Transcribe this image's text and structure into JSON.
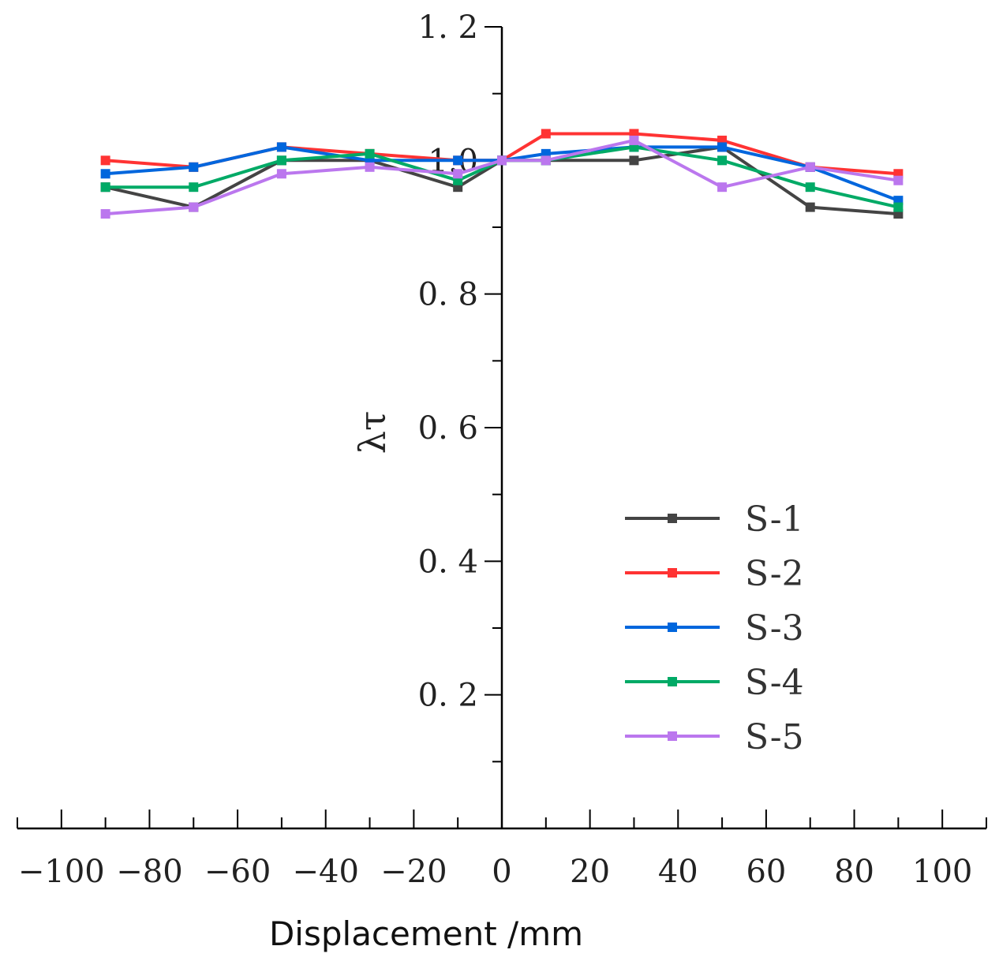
{
  "chart_data": {
    "type": "line",
    "title": "",
    "xlabel": "Displacement /mm",
    "ylabel": "λτ",
    "xlim": [
      -110,
      110
    ],
    "ylim": [
      0,
      1.2
    ],
    "x_ticks": [
      -100,
      -80,
      -60,
      -40,
      -20,
      0,
      20,
      40,
      60,
      80,
      100
    ],
    "x_tick_labels": [
      "−100",
      "−80",
      "−60",
      "−40",
      "−20",
      "0",
      "20",
      "40",
      "60",
      "80",
      "100"
    ],
    "y_ticks_labeled": [
      0.2,
      0.4,
      0.6,
      0.8,
      1.2
    ],
    "y_tick_labels": [
      "0. 2",
      "0. 4",
      "0. 6",
      "0. 8",
      "1. 2"
    ],
    "y_label_partial": "1.0",
    "grid": false,
    "legend_position": "bottom-right",
    "x": [
      -90,
      -70,
      -50,
      -30,
      -10,
      0,
      10,
      30,
      50,
      70,
      90
    ],
    "series": [
      {
        "name": "S-1",
        "color": "#444444",
        "values": [
          0.96,
          0.93,
          1.0,
          1.0,
          0.96,
          1.0,
          1.0,
          1.0,
          1.02,
          0.93,
          0.92
        ]
      },
      {
        "name": "S-2",
        "color": "#ff3333",
        "values": [
          1.0,
          0.99,
          1.02,
          1.01,
          1.0,
          1.0,
          1.04,
          1.04,
          1.03,
          0.99,
          0.98
        ]
      },
      {
        "name": "S-3",
        "color": "#0066dd",
        "values": [
          0.98,
          0.99,
          1.02,
          1.0,
          1.0,
          1.0,
          1.01,
          1.02,
          1.02,
          0.99,
          0.94
        ]
      },
      {
        "name": "S-4",
        "color": "#00aa66",
        "values": [
          0.96,
          0.96,
          1.0,
          1.01,
          0.97,
          1.0,
          1.0,
          1.02,
          1.0,
          0.96,
          0.93
        ]
      },
      {
        "name": "S-5",
        "color": "#bb77ee",
        "values": [
          0.92,
          0.93,
          0.98,
          0.99,
          0.98,
          1.0,
          1.0,
          1.03,
          0.96,
          0.99,
          0.97
        ]
      }
    ]
  }
}
